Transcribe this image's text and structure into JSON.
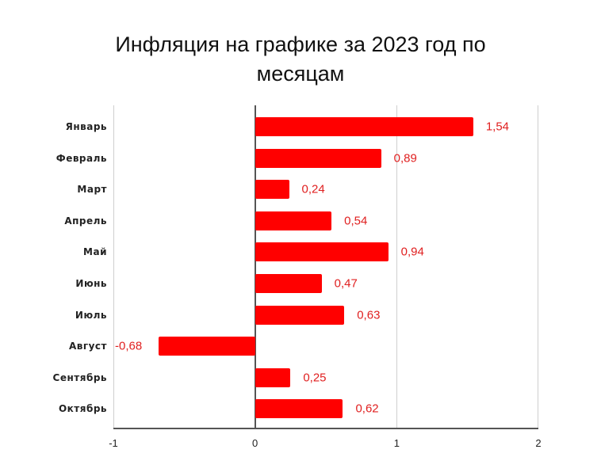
{
  "title": "Инфляция на графике за 2023 год по месяцам",
  "title_lines": [
    "Инфляция на графике за 2023 год по",
    "месяцам"
  ],
  "colors": {
    "bar": "#ff0000",
    "label": "#e02020"
  },
  "chart_data": {
    "type": "bar",
    "orientation": "horizontal",
    "title": "Инфляция на графике за 2023 год по месяцам",
    "xlabel": "",
    "ylabel": "",
    "categories": [
      "Январь",
      "Февраль",
      "Март",
      "Апрель",
      "Май",
      "Июнь",
      "Июль",
      "Август",
      "Сентябрь",
      "Октябрь"
    ],
    "values": [
      1.54,
      0.89,
      0.24,
      0.54,
      0.94,
      0.47,
      0.63,
      -0.68,
      0.25,
      0.62
    ],
    "value_labels": [
      "1,54",
      "0,89",
      "0,24",
      "0,54",
      "0,94",
      "0,47",
      "0,63",
      "-0,68",
      "0,25",
      "0,62"
    ],
    "xlim": [
      -1,
      2
    ],
    "x_ticks": [
      "-1",
      "0",
      "1",
      "2"
    ],
    "grid": true,
    "legend": null
  }
}
